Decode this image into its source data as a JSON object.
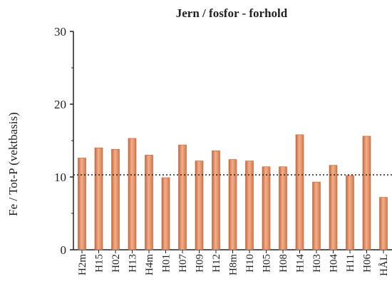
{
  "chart_data": {
    "type": "bar",
    "title": "Jern / fosfor - forhold",
    "y_label": "Fe / Tot-P (vektbasis)",
    "categories": [
      "H2m",
      "H15",
      "H02",
      "H13",
      "H4m",
      "H01",
      "H07",
      "H09",
      "H12",
      "H8m",
      "H10",
      "H05",
      "H08",
      "H14",
      "H03",
      "H04",
      "H11",
      "H06",
      "HÅL"
    ],
    "values": [
      12.6,
      14.0,
      13.8,
      15.3,
      13.0,
      9.9,
      14.4,
      12.2,
      13.6,
      12.4,
      12.2,
      11.4,
      11.4,
      15.8,
      9.3,
      11.6,
      10.2,
      15.6,
      7.2
    ],
    "color": "#e8926a",
    "ylim": [
      0,
      30
    ],
    "yticks": [
      0,
      10,
      20,
      30
    ],
    "minor_yticks": [
      5,
      15,
      25
    ],
    "reference_line": 10.3
  }
}
